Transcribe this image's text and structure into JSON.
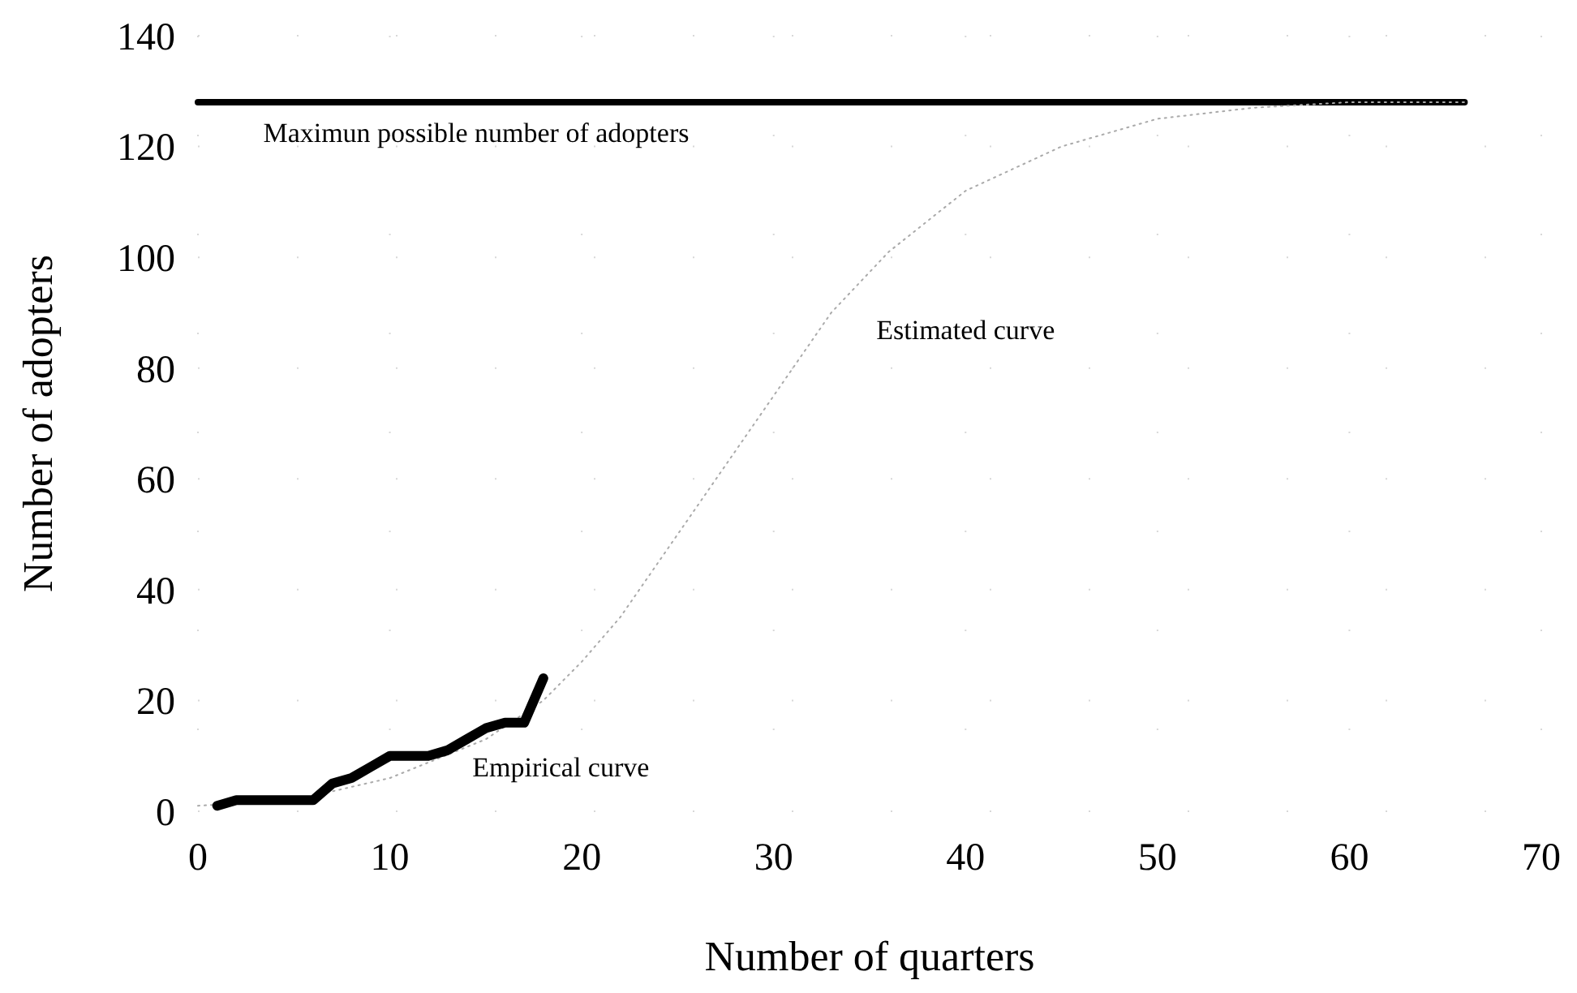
{
  "chart_data": {
    "type": "line",
    "xlabel": "Number of quarters",
    "ylabel": "Number of adopters",
    "xlim": [
      0,
      70
    ],
    "ylim": [
      0,
      140
    ],
    "xticks": [
      0,
      10,
      20,
      30,
      40,
      50,
      60,
      70
    ],
    "yticks": [
      0,
      20,
      40,
      60,
      80,
      100,
      120,
      140
    ],
    "grid": true,
    "marker": "none",
    "series": [
      {
        "name": "Maximun possible number of adopters",
        "color": "#000000",
        "line_style": "solid",
        "x": [
          0,
          66
        ],
        "values": [
          128,
          128
        ]
      },
      {
        "name": "Estimated curve",
        "color": "#aaaaaa",
        "line_style": "dotted",
        "x": [
          0,
          5,
          10,
          15,
          18,
          20,
          22,
          25,
          28,
          30,
          33,
          36,
          40,
          45,
          50,
          55,
          60,
          66
        ],
        "values": [
          1,
          2,
          6,
          13,
          20,
          27,
          35,
          50,
          65,
          75,
          90,
          101,
          112,
          120,
          125,
          127,
          128,
          128
        ]
      },
      {
        "name": "Empirical curve",
        "color": "#000000",
        "line_style": "solid",
        "x": [
          1,
          2,
          3,
          4,
          5,
          6,
          7,
          8,
          9,
          10,
          11,
          12,
          13,
          14,
          15,
          16,
          17,
          18
        ],
        "values": [
          1,
          2,
          2,
          2,
          2,
          2,
          5,
          6,
          8,
          10,
          10,
          10,
          11,
          13,
          15,
          16,
          16,
          24
        ]
      }
    ]
  }
}
